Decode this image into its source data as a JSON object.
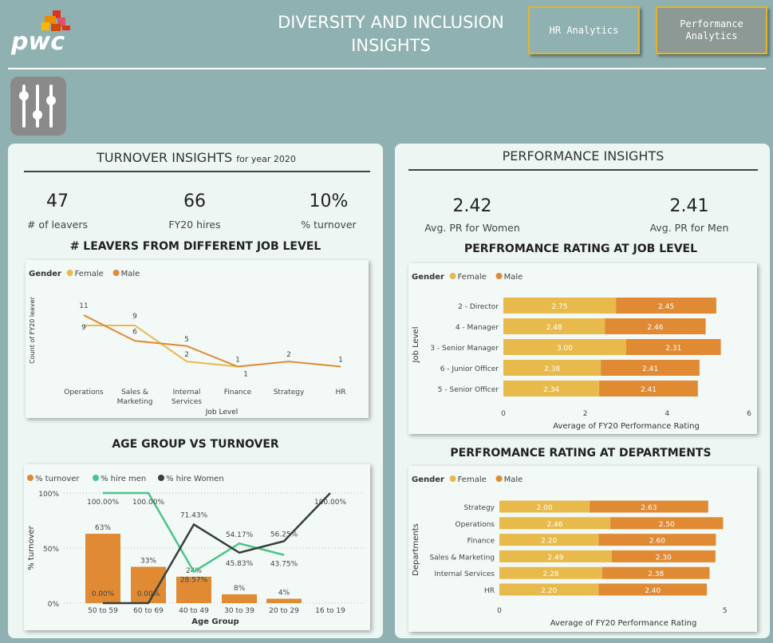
{
  "header": {
    "logo_text": "pwc",
    "title_line1": "DIVERSITY AND INCLUSION",
    "title_line2": "INSIGHTS",
    "nav": [
      {
        "label": "HR Analytics"
      },
      {
        "label_line1": "Performance",
        "label_line2": "Analytics"
      }
    ]
  },
  "turnover": {
    "title": "TURNOVER INSIGHTS",
    "subtitle": "for year 2020",
    "kpis": [
      {
        "value": "47",
        "label": "# of leavers"
      },
      {
        "value": "66",
        "label": "FY20 hires"
      },
      {
        "value": "10%",
        "label": "% turnover"
      }
    ]
  },
  "performance": {
    "title": "PERFORMANCE INSIGHTS",
    "kpis": [
      {
        "value": "2.42",
        "label": "Avg. PR for Women"
      },
      {
        "value": "2.41",
        "label": "Avg. PR for Men"
      }
    ]
  },
  "colors": {
    "female": "#e8ba4c",
    "male": "#e08a34",
    "hire_men": "#4dc38c",
    "hire_women": "#37403d"
  },
  "chart_data": [
    {
      "id": "leavers",
      "type": "line",
      "title": "# LEAVERS FROM DIFFERENT JOB LEVEL",
      "xlabel": "Job Level",
      "ylabel": "Count of FY20 leaver",
      "legend_title": "Gender",
      "legend_position": "top-left",
      "categories": [
        "Operations",
        "Sales & Marketing",
        "Internal Services",
        "Finance",
        "Strategy",
        "HR"
      ],
      "category_lines": [
        [
          "Operations"
        ],
        [
          "Sales &",
          "Marketing"
        ],
        [
          "Internal",
          "Services"
        ],
        [
          "Finance"
        ],
        [
          "Strategy"
        ],
        [
          "HR"
        ]
      ],
      "series": [
        {
          "name": "Female",
          "values": [
            9,
            9,
            2,
            1,
            null,
            null
          ]
        },
        {
          "name": "Male",
          "values": [
            11,
            6,
            5,
            1,
            2,
            1
          ]
        }
      ],
      "ylim": [
        0,
        12
      ],
      "grid": false
    },
    {
      "id": "age",
      "type": "bar",
      "title": "AGE GROUP VS TURNOVER",
      "xlabel": "Age Group",
      "ylabel": "% turnover",
      "legend_position": "top-left",
      "categories": [
        "50 to 59",
        "60 to 69",
        "40 to 49",
        "30 to 39",
        "20 to 29",
        "16 to 19"
      ],
      "yticks": [
        "0%",
        "50%",
        "100%"
      ],
      "ylim": [
        0,
        100
      ],
      "grid": true,
      "series": [
        {
          "name": "% turnover",
          "kind": "bar",
          "values": [
            63,
            33,
            24,
            8,
            4,
            null
          ],
          "labels": [
            "63%",
            "33%",
            "24%",
            "8%",
            "4%",
            ""
          ]
        },
        {
          "name": "% hire men",
          "kind": "line",
          "values": [
            100,
            100,
            28.57,
            54.17,
            43.75,
            null
          ],
          "labels": [
            "100.00%",
            "100.00%",
            "28.57%",
            "54.17%",
            "43.75%",
            ""
          ]
        },
        {
          "name": "% hire Women",
          "kind": "line",
          "values": [
            0,
            0,
            71.43,
            45.83,
            56.25,
            100
          ],
          "labels": [
            "0.00%",
            "0.00%",
            "71.43%",
            "45.83%",
            "56.25%",
            "100.00%"
          ]
        }
      ]
    },
    {
      "id": "joblevel",
      "type": "bar",
      "orientation": "horizontal-stacked",
      "title": "PERFROMANCE RATING AT JOB LEVEL",
      "xlabel": "Average of FY20 Performance Rating",
      "ylabel": "Job Level",
      "legend_title": "Gender",
      "legend_position": "top-left",
      "categories": [
        "2 - Director",
        "4 - Manager",
        "3 - Senior Manager",
        "6 - Junior Officer",
        "5 - Senior Officer"
      ],
      "series": [
        {
          "name": "Female",
          "values": [
            2.75,
            2.48,
            3.0,
            2.38,
            2.34
          ],
          "labels": [
            "2.75",
            "2.48",
            "3.00",
            "2.38",
            "2.34"
          ]
        },
        {
          "name": "Male",
          "values": [
            2.45,
            2.46,
            2.31,
            2.41,
            2.41
          ],
          "labels": [
            "2.45",
            "2.46",
            "2.31",
            "2.41",
            "2.41"
          ]
        }
      ],
      "xticks": [
        "0",
        "2",
        "4",
        "6"
      ],
      "xlim": [
        0,
        6
      ]
    },
    {
      "id": "departments",
      "type": "bar",
      "orientation": "horizontal-stacked",
      "title": "PERFROMANCE RATING AT DEPARTMENTS",
      "xlabel": "Average of FY20 Performance Rating",
      "ylabel": "Departments",
      "legend_title": "Gender",
      "legend_position": "top-left",
      "categories": [
        "Strategy",
        "Operations",
        "Finance",
        "Sales & Marketing",
        "Internal Services",
        "HR"
      ],
      "series": [
        {
          "name": "Female",
          "values": [
            2.0,
            2.46,
            2.2,
            2.49,
            2.28,
            2.2
          ],
          "labels": [
            "2.00",
            "2.46",
            "2.20",
            "2.49",
            "2.28",
            "2.20"
          ]
        },
        {
          "name": "Male",
          "values": [
            2.63,
            2.5,
            2.6,
            2.3,
            2.38,
            2.4
          ],
          "labels": [
            "2.63",
            "2.50",
            "2.60",
            "2.30",
            "2.38",
            "2.40"
          ]
        }
      ],
      "xticks": [
        "0",
        "5"
      ],
      "xlim": [
        0,
        5.5
      ]
    }
  ]
}
